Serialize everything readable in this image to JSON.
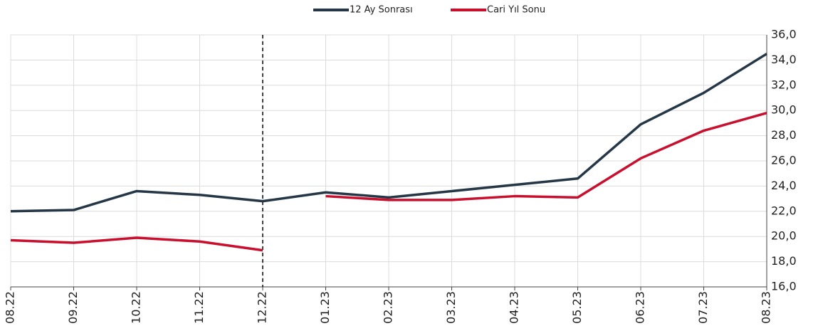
{
  "chart_data": {
    "type": "line",
    "categories": [
      "08.22",
      "09.22",
      "10.22",
      "11.22",
      "12.22",
      "01.23",
      "02.23",
      "03.23",
      "04.23",
      "05.23",
      "06.23",
      "07.23",
      "08.23"
    ],
    "series": [
      {
        "name": "12 Ay Sonrası",
        "color": "#253746",
        "values": [
          22.0,
          22.1,
          23.6,
          23.3,
          22.8,
          23.5,
          23.1,
          23.6,
          24.1,
          24.6,
          28.9,
          31.4,
          34.5
        ]
      },
      {
        "name": "Cari Yıl Sonu",
        "color": "#c8102e",
        "values": [
          19.7,
          19.5,
          19.9,
          19.6,
          18.9,
          23.2,
          22.9,
          22.9,
          23.2,
          23.1,
          26.2,
          28.4,
          29.8
        ],
        "break_at_divider": true
      }
    ],
    "divider": "12.22",
    "ylim": [
      16,
      36
    ],
    "yticks": [
      {
        "value": 16,
        "label": "16,0"
      },
      {
        "value": 18,
        "label": "18,0"
      },
      {
        "value": 20,
        "label": "20,0"
      },
      {
        "value": 22,
        "label": "22,0"
      },
      {
        "value": 24,
        "label": "24,0"
      },
      {
        "value": 26,
        "label": "26,0"
      },
      {
        "value": 28,
        "label": "28,0"
      },
      {
        "value": 30,
        "label": "30,0"
      },
      {
        "value": 32,
        "label": "32,0"
      },
      {
        "value": 34,
        "label": "34,0"
      },
      {
        "value": 36,
        "label": "36,0"
      }
    ],
    "grid": true,
    "legend": "top"
  }
}
